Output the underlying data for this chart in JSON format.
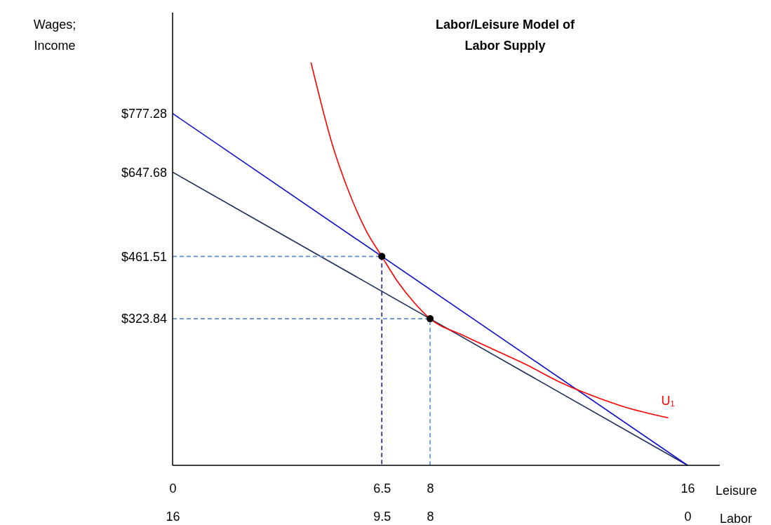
{
  "chart_data": {
    "type": "line",
    "title": "Labor/Leisure Model of Labor Supply",
    "ylabel": "Wages; Income",
    "xlabel": "Leisure",
    "x2label": "Labor",
    "xlim": [
      0,
      17
    ],
    "xticks": [
      0,
      6.5,
      8,
      16
    ],
    "x2lim": [
      16,
      -1
    ],
    "x2ticks": [
      16,
      9.5,
      8,
      0
    ],
    "ylim": [
      0,
      1000
    ],
    "yticks": [
      {
        "value": 323.84,
        "label": "$323.84"
      },
      {
        "value": 461.51,
        "label": "$461.51"
      },
      {
        "value": 647.68,
        "label": "$647.68"
      },
      {
        "value": 777.28,
        "label": "$777.28"
      }
    ],
    "grid": false,
    "legend": false,
    "series": [
      {
        "color": "#1f2f5a",
        "x": [
          0,
          16
        ],
        "values": [
          647.68,
          0
        ]
      },
      {
        "color": "#1010d0",
        "x": [
          0,
          16
        ],
        "values": [
          777.28,
          0
        ]
      },
      {
        "color": "#5b8fd0",
        "line_style": "dashed",
        "x": [
          0,
          6.5
        ],
        "values": [
          461.51,
          461.51
        ]
      },
      {
        "color": "#1a1aa0",
        "line_style": "dashed",
        "x": [
          6.5,
          6.5
        ],
        "values": [
          461.51,
          0
        ]
      },
      {
        "color": "#5b8fd0",
        "line_style": "dashed",
        "x": [
          0,
          8,
          8
        ],
        "values": [
          323.84,
          323.84,
          0
        ]
      },
      {
        "name": "U₁",
        "color": "#ff0000",
        "x": [
          4.3,
          5,
          5.5,
          6,
          6.5,
          7,
          7.5,
          8,
          9,
          10,
          11,
          12,
          13,
          14,
          15.4
        ],
        "values": [
          890,
          700,
          600,
          520,
          461.51,
          405,
          360,
          323.84,
          288,
          255,
          222,
          185,
          155,
          130,
          105
        ]
      },
      {
        "type": "scatter",
        "color": "#000000",
        "marker": "circle",
        "x": [
          6.5,
          8
        ],
        "values": [
          461.51,
          323.84
        ]
      }
    ]
  }
}
